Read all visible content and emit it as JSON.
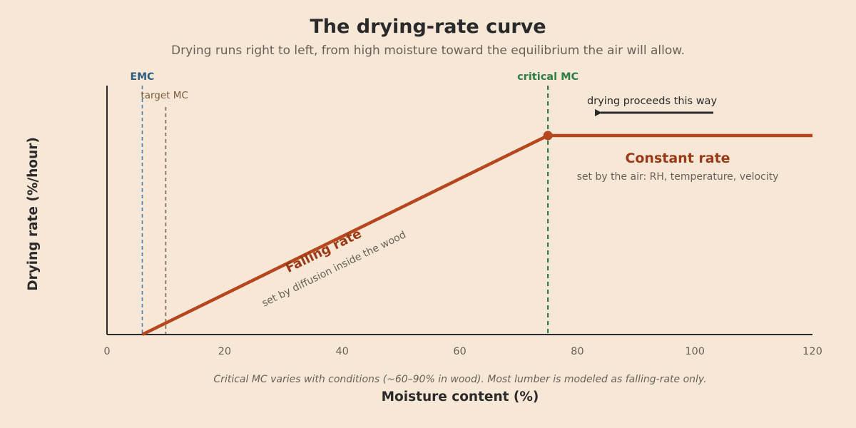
{
  "colors": {
    "background": "#f6e7d7",
    "curve": "#b5461e",
    "axis": "#2a2a2a",
    "emc": "#3f82b3",
    "emc_label": "#2c5d80",
    "target": "#7a5a3c",
    "critical": "#2e7d45",
    "muted_text": "#6b6058",
    "zone_title": "#9a3a16"
  },
  "chart_data": {
    "type": "line",
    "title": "The drying-rate curve",
    "subtitle": "Drying runs right to left, from high moisture toward the equilibrium the air will allow.",
    "xlabel": "Moisture content (%)",
    "ylabel": "Drying rate (%/hour)",
    "xlim": [
      0,
      120
    ],
    "ylim": [
      0,
      1
    ],
    "x_ticks": [
      0,
      20,
      40,
      60,
      80,
      100,
      120
    ],
    "grid": false,
    "series": [
      {
        "values": [
          {
            "x": 6,
            "y": 0
          },
          {
            "x": 75,
            "y": 0.8
          },
          {
            "x": 120,
            "y": 0.8
          }
        ]
      }
    ],
    "critical_point": {
      "x": 75,
      "y": 0.8
    },
    "reference_lines": [
      {
        "key": "emc",
        "x": 6,
        "label": "EMC"
      },
      {
        "key": "target",
        "x": 10,
        "label": "target MC"
      },
      {
        "key": "critical",
        "x": 75,
        "label": "critical MC"
      }
    ],
    "annotations": {
      "direction_label": "drying proceeds this way",
      "constant_title": "Constant rate",
      "constant_sub": "set by the air: RH, temperature, velocity",
      "falling_title": "Falling rate",
      "falling_sub": "set by diffusion inside the wood",
      "footnote": "Critical MC varies with conditions (~60–90% in wood). Most lumber is modeled as falling-rate only."
    }
  }
}
